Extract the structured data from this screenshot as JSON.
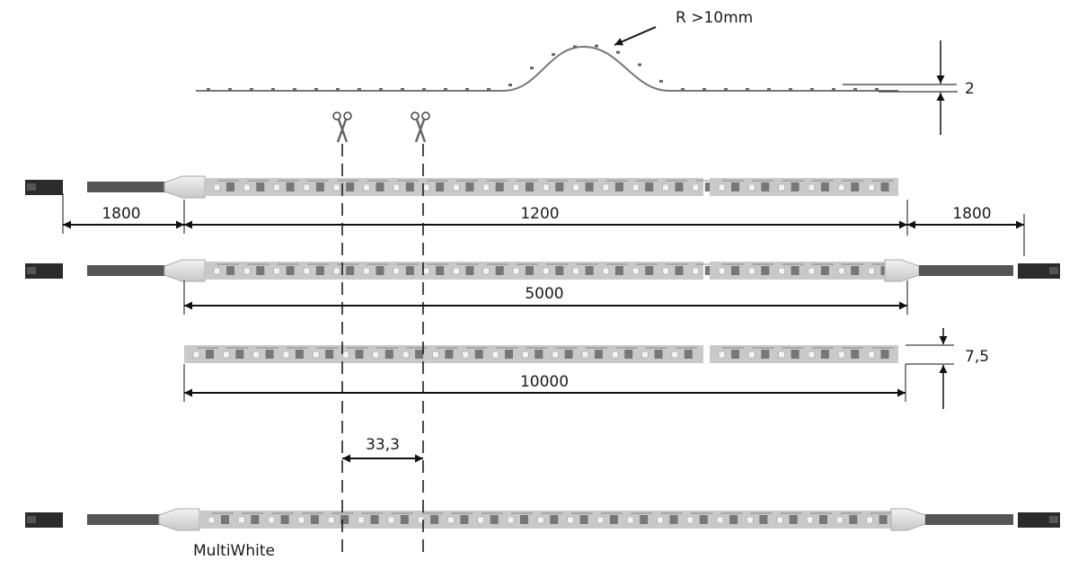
{
  "profile": {
    "bend_radius_label": "R >10mm",
    "thickness_label": "2"
  },
  "dimensions": {
    "cable_left": "1800",
    "strip_length_short": "1200",
    "cable_right": "1800",
    "strip_length_medium": "5000",
    "strip_length_long": "10000",
    "strip_width": "7,5",
    "cut_pitch": "33,3"
  },
  "variant_label": "MultiWhite",
  "icons": [
    "scissors-icon",
    "scissors-icon"
  ],
  "colors": {
    "strip": "#c9c9c9",
    "led": "#f4f4f4",
    "cable": "#555555",
    "connector": "#2b2b2b",
    "cap": "#e2e2e2",
    "line": "#111111"
  }
}
